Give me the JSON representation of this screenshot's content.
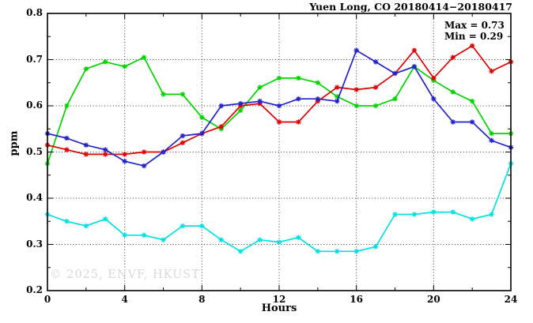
{
  "chart_data": {
    "type": "line",
    "title": "Yuen Long, CO 20180414−20180417",
    "xlabel": "Hours",
    "ylabel": "ppm",
    "annotations": [
      "Max = 0.73",
      "Min = 0.29"
    ],
    "watermark": "© 2025, ENVF, HKUST",
    "legend_position": "none",
    "grid": true,
    "xlim": [
      0,
      24
    ],
    "ylim": [
      0.2,
      0.8
    ],
    "x_major_ticks": [
      0,
      4,
      8,
      12,
      16,
      20,
      24
    ],
    "x_tick_labels": [
      "0",
      "4",
      "8",
      "12",
      "16",
      "20",
      "24"
    ],
    "x_minor_ticks": [
      2,
      6,
      10,
      14,
      18,
      22
    ],
    "y_major_ticks": [
      0.2,
      0.3,
      0.4,
      0.5,
      0.6,
      0.7,
      0.8
    ],
    "y_tick_labels": [
      "0.2",
      "0.3",
      "0.4",
      "0.5",
      "0.6",
      "0.7",
      "0.8"
    ],
    "y_minor_ticks": [
      0.25,
      0.35,
      0.45,
      0.55,
      0.65,
      0.75
    ],
    "x": [
      0,
      1,
      2,
      3,
      4,
      5,
      6,
      7,
      8,
      9,
      10,
      11,
      12,
      13,
      14,
      15,
      16,
      17,
      18,
      19,
      20,
      21,
      22,
      23,
      24
    ],
    "series": [
      {
        "name": "green",
        "color": "#00d400",
        "values": [
          0.475,
          0.6,
          0.68,
          0.695,
          0.685,
          0.705,
          0.625,
          0.625,
          0.575,
          0.55,
          0.59,
          0.64,
          0.66,
          0.66,
          0.65,
          0.62,
          0.6,
          0.6,
          0.615,
          0.685,
          0.655,
          0.63,
          0.61,
          0.54,
          0.54
        ]
      },
      {
        "name": "red",
        "color": "#df0000",
        "values": [
          0.515,
          0.505,
          0.495,
          0.495,
          0.495,
          0.5,
          0.5,
          0.52,
          0.54,
          0.555,
          0.6,
          0.605,
          0.565,
          0.565,
          0.61,
          0.64,
          0.635,
          0.64,
          0.67,
          0.72,
          0.66,
          0.705,
          0.73,
          0.675,
          0.695
        ]
      },
      {
        "name": "blue",
        "color": "#2222cc",
        "values": [
          0.54,
          0.53,
          0.515,
          0.505,
          0.48,
          0.47,
          0.5,
          0.535,
          0.54,
          0.6,
          0.605,
          0.61,
          0.6,
          0.615,
          0.615,
          0.61,
          0.72,
          0.695,
          0.67,
          0.685,
          0.615,
          0.565,
          0.565,
          0.525,
          0.51
        ]
      },
      {
        "name": "cyan",
        "color": "#00e1e1",
        "values": [
          0.365,
          0.35,
          0.34,
          0.355,
          0.32,
          0.32,
          0.31,
          0.34,
          0.34,
          0.31,
          0.285,
          0.31,
          0.305,
          0.315,
          0.285,
          0.285,
          0.285,
          0.295,
          0.365,
          0.365,
          0.37,
          0.37,
          0.355,
          0.365,
          0.475
        ]
      }
    ]
  }
}
